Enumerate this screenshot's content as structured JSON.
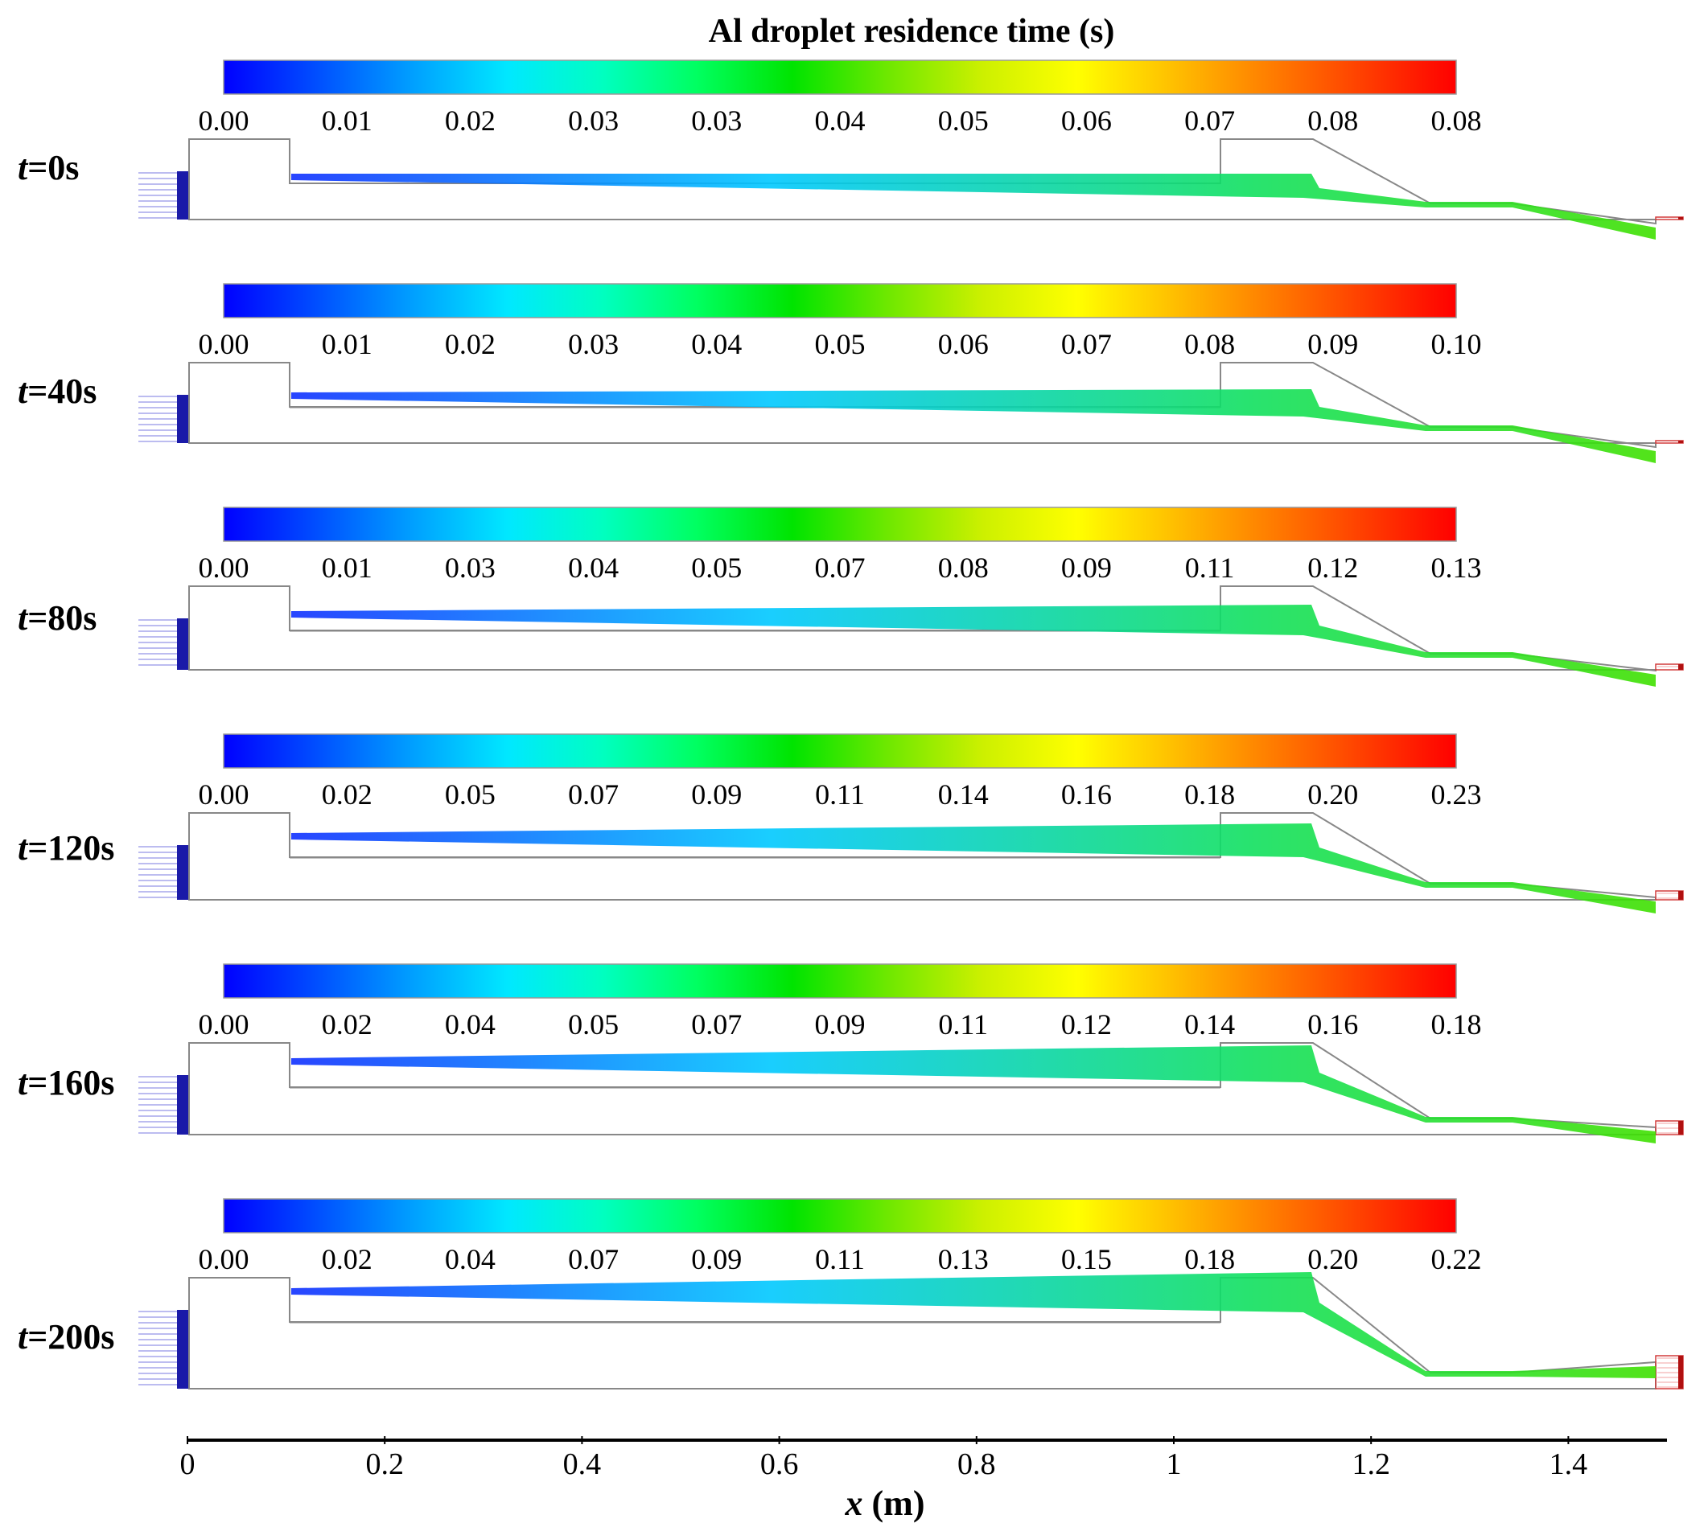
{
  "title": "Al droplet residence time (s)",
  "colormap": [
    "#0000ff",
    "#0050ff",
    "#00a0ff",
    "#00e8ff",
    "#00ffc0",
    "#00ff60",
    "#00e400",
    "#6ee800",
    "#ccf000",
    "#ffff00",
    "#ffc000",
    "#ff8000",
    "#ff4000",
    "#ff0000"
  ],
  "panels": [
    {
      "time_label": "t=0s",
      "t": "t",
      "rest": "=0s",
      "ticks": [
        "0.00",
        "0.01",
        "0.02",
        "0.03",
        "0.03",
        "0.04",
        "0.05",
        "0.06",
        "0.07",
        "0.08",
        "0.08"
      ]
    },
    {
      "time_label": "t=40s",
      "t": "t",
      "rest": "=40s",
      "ticks": [
        "0.00",
        "0.01",
        "0.02",
        "0.03",
        "0.04",
        "0.05",
        "0.06",
        "0.07",
        "0.08",
        "0.09",
        "0.10"
      ]
    },
    {
      "time_label": "t=80s",
      "t": "t",
      "rest": "=80s",
      "ticks": [
        "0.00",
        "0.01",
        "0.03",
        "0.04",
        "0.05",
        "0.07",
        "0.08",
        "0.09",
        "0.11",
        "0.12",
        "0.13"
      ]
    },
    {
      "time_label": "t=120s",
      "t": "t",
      "rest": "=120s",
      "ticks": [
        "0.00",
        "0.02",
        "0.05",
        "0.07",
        "0.09",
        "0.11",
        "0.14",
        "0.16",
        "0.18",
        "0.20",
        "0.23"
      ]
    },
    {
      "time_label": "t=160s",
      "t": "t",
      "rest": "=160s",
      "ticks": [
        "0.00",
        "0.02",
        "0.04",
        "0.05",
        "0.07",
        "0.09",
        "0.11",
        "0.12",
        "0.14",
        "0.16",
        "0.18"
      ]
    },
    {
      "time_label": "t=200s",
      "t": "t",
      "rest": "=200s",
      "ticks": [
        "0.00",
        "0.02",
        "0.04",
        "0.07",
        "0.09",
        "0.11",
        "0.13",
        "0.15",
        "0.18",
        "0.20",
        "0.22"
      ]
    }
  ],
  "x_axis": {
    "label_var": "x",
    "label_unit": " (m)",
    "ticks": [
      "0",
      "0.2",
      "0.4",
      "0.6",
      "0.8",
      "1",
      "1.2",
      "1.4"
    ],
    "tick_values": [
      0,
      0.2,
      0.4,
      0.6,
      0.8,
      1.0,
      1.2,
      1.4
    ],
    "range": [
      0,
      1.5
    ]
  },
  "colors": {
    "inlet": "#1a1aa8",
    "outlet": "#d23c3c",
    "wall": "#888888"
  }
}
